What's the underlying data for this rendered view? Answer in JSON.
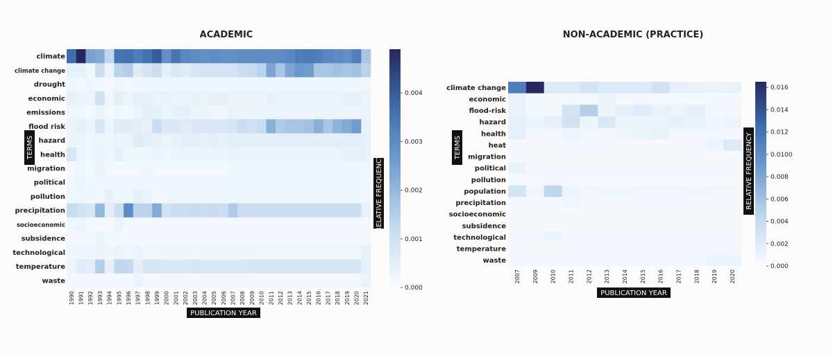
{
  "chart_data": [
    {
      "type": "heatmap",
      "title": "ACADEMIC",
      "xlabel": "PUBLICATION YEAR",
      "ylabel": "TERMS",
      "colorbar_label": "RELATIVE FREQUENCY",
      "colorbar_ticks": [
        "0.000",
        "0.001",
        "0.002",
        "0.003",
        "0.004"
      ],
      "vmin": 0,
      "vmax": 0.0049,
      "colormap": [
        "#f7fbff",
        "#c6dbef",
        "#6a98cc",
        "#3f6fb1",
        "#26285e"
      ],
      "x": [
        "1990",
        "1991",
        "1992",
        "1993",
        "1994",
        "1995",
        "1996",
        "1997",
        "1998",
        "1999",
        "2000",
        "2001",
        "2002",
        "2003",
        "2004",
        "2005",
        "2006",
        "2007",
        "2008",
        "2009",
        "2010",
        "2011",
        "2012",
        "2013",
        "2014",
        "2015",
        "2016",
        "2017",
        "2018",
        "2019",
        "2020",
        "2021"
      ],
      "y": [
        "climate",
        "climate change",
        "drought",
        "economic",
        "emissions",
        "flood risk",
        "hazard",
        "health",
        "migration",
        "political",
        "pollution",
        "precipitation",
        "socioeconomic",
        "subsidence",
        "technological",
        "temperature",
        "waste"
      ],
      "z": [
        [
          0.0037,
          0.0049,
          0.0025,
          0.0023,
          0.0013,
          0.0035,
          0.0036,
          0.0033,
          0.0036,
          0.004,
          0.0029,
          0.0035,
          0.0031,
          0.003,
          0.0029,
          0.003,
          0.0029,
          0.0029,
          0.003,
          0.003,
          0.003,
          0.003,
          0.003,
          0.0031,
          0.0033,
          0.0034,
          0.0033,
          0.0031,
          0.003,
          0.0029,
          0.0033,
          0.0017
        ],
        [
          0.0004,
          0.0004,
          0.0002,
          0.0011,
          0.0003,
          0.0014,
          0.0015,
          0.0006,
          0.0009,
          0.0011,
          0.0005,
          0.0007,
          0.0006,
          0.0008,
          0.0009,
          0.0009,
          0.0009,
          0.0009,
          0.0011,
          0.0012,
          0.0014,
          0.0024,
          0.0017,
          0.0024,
          0.0027,
          0.0026,
          0.0017,
          0.0017,
          0.0018,
          0.0017,
          0.0018,
          0.0014
        ],
        [
          0.0002,
          0.0001,
          0.0002,
          0.0001,
          0.0001,
          0.0002,
          0.0001,
          0.0002,
          0.0002,
          0.0002,
          0.0002,
          0.0002,
          0.0002,
          0.0002,
          0.0002,
          0.0002,
          0.0002,
          0.0002,
          0.0002,
          0.0002,
          0.0002,
          0.0002,
          0.0002,
          0.0002,
          0.0002,
          0.0002,
          0.0002,
          0.0002,
          0.0002,
          0.0002,
          0.0002,
          0.0002
        ],
        [
          0.0004,
          0.0003,
          0.0003,
          0.001,
          0.0002,
          0.0005,
          0.0003,
          0.0004,
          0.0004,
          0.0003,
          0.0004,
          0.0003,
          0.0003,
          0.0004,
          0.0003,
          0.0004,
          0.0004,
          0.0003,
          0.0003,
          0.0003,
          0.0003,
          0.0004,
          0.0003,
          0.0003,
          0.0003,
          0.0003,
          0.0003,
          0.0003,
          0.0003,
          0.0004,
          0.0004,
          0.0003
        ],
        [
          0.0002,
          0.0002,
          0.0001,
          0.0003,
          0.0001,
          0.0002,
          0.0001,
          0.0003,
          0.0005,
          0.0004,
          0.0003,
          0.0004,
          0.0004,
          0.0003,
          0.0003,
          0.0002,
          0.0002,
          0.0004,
          0.0003,
          0.0003,
          0.0003,
          0.0003,
          0.0003,
          0.0003,
          0.0003,
          0.0003,
          0.0003,
          0.0003,
          0.0003,
          0.0003,
          0.0003,
          0.0003
        ],
        [
          0.0003,
          0.0004,
          0.0003,
          0.0008,
          0.0003,
          0.0006,
          0.0006,
          0.0005,
          0.0004,
          0.0011,
          0.0007,
          0.0007,
          0.0006,
          0.0007,
          0.0007,
          0.0007,
          0.0007,
          0.0008,
          0.0011,
          0.001,
          0.0012,
          0.0022,
          0.0016,
          0.0017,
          0.0017,
          0.0018,
          0.0022,
          0.0017,
          0.0021,
          0.0023,
          0.0026,
          0.0004
        ],
        [
          0.0003,
          0.0003,
          0.0002,
          0.0003,
          0.0002,
          0.0003,
          0.0003,
          0.0006,
          0.0005,
          0.0004,
          0.0003,
          0.0004,
          0.0005,
          0.0005,
          0.0004,
          0.0005,
          0.0004,
          0.0005,
          0.0005,
          0.0005,
          0.0005,
          0.0005,
          0.0005,
          0.0005,
          0.0005,
          0.0005,
          0.0005,
          0.0005,
          0.0005,
          0.0005,
          0.0005,
          0.0004
        ],
        [
          0.0008,
          0.0003,
          0.0002,
          0.0003,
          0.0002,
          0.0004,
          0.0002,
          0.0002,
          0.0002,
          0.0003,
          0.0002,
          0.0003,
          0.0003,
          0.0003,
          0.0003,
          0.0003,
          0.0003,
          0.0004,
          0.0003,
          0.0003,
          0.0003,
          0.0003,
          0.0003,
          0.0003,
          0.0003,
          0.0003,
          0.0003,
          0.0003,
          0.0003,
          0.0004,
          0.0004,
          0.0004
        ],
        [
          0.0001,
          0.0002,
          0.0001,
          0.0003,
          0.0001,
          0.0001,
          0.0001,
          0.0001,
          0.0002,
          0.0001,
          0.0001,
          0.0001,
          0.0001,
          0.0001,
          0.0001,
          0.0001,
          0.0001,
          0.0002,
          0.0002,
          0.0002,
          0.0002,
          0.0002,
          0.0002,
          0.0002,
          0.0002,
          0.0002,
          0.0002,
          0.0002,
          0.0002,
          0.0002,
          0.0002,
          0.0002
        ],
        [
          0.0002,
          0.0003,
          0.0002,
          0.0002,
          0.0002,
          0.0002,
          0.0002,
          0.0002,
          0.0002,
          0.0002,
          0.0002,
          0.0002,
          0.0002,
          0.0002,
          0.0002,
          0.0002,
          0.0002,
          0.0002,
          0.0002,
          0.0002,
          0.0002,
          0.0002,
          0.0002,
          0.0002,
          0.0002,
          0.0002,
          0.0002,
          0.0002,
          0.0002,
          0.0002,
          0.0002,
          0.0002
        ],
        [
          0.0002,
          0.0002,
          0.0002,
          0.0002,
          0.0004,
          0.0002,
          0.0002,
          0.0004,
          0.0003,
          0.0001,
          0.0002,
          0.0002,
          0.0002,
          0.0002,
          0.0002,
          0.0002,
          0.0002,
          0.0002,
          0.0002,
          0.0002,
          0.0002,
          0.0002,
          0.0002,
          0.0002,
          0.0002,
          0.0002,
          0.0002,
          0.0002,
          0.0002,
          0.0002,
          0.0002,
          0.0002
        ],
        [
          0.0012,
          0.001,
          0.0008,
          0.002,
          0.0005,
          0.0011,
          0.003,
          0.0014,
          0.0014,
          0.0023,
          0.001,
          0.0011,
          0.0011,
          0.0012,
          0.0011,
          0.0012,
          0.0011,
          0.0016,
          0.0011,
          0.0011,
          0.0011,
          0.0011,
          0.0011,
          0.0011,
          0.0011,
          0.0011,
          0.0011,
          0.0011,
          0.0011,
          0.0011,
          0.0011,
          0.0004
        ],
        [
          0.0002,
          0.0003,
          0.0001,
          0.0001,
          0.0001,
          0.0003,
          0.0001,
          0.0001,
          0.0001,
          0.0001,
          0.0001,
          0.0001,
          0.0001,
          0.0001,
          0.0001,
          0.0001,
          0.0001,
          0.0001,
          0.0001,
          0.0001,
          0.0001,
          0.0001,
          0.0001,
          0.0001,
          0.0001,
          0.0001,
          0.0001,
          0.0001,
          0.0001,
          0.0001,
          0.0001,
          0.0001
        ],
        [
          0.0001,
          0.0001,
          0.0001,
          0.0003,
          0.0001,
          0.0001,
          0.0001,
          0.0001,
          0.0001,
          0.0001,
          0.0001,
          0.0001,
          0.0001,
          0.0001,
          0.0001,
          0.0001,
          0.0001,
          0.0001,
          0.0001,
          0.0001,
          0.0001,
          0.0001,
          0.0001,
          0.0001,
          0.0001,
          0.0001,
          0.0001,
          0.0001,
          0.0001,
          0.0001,
          0.0001,
          0.0001
        ],
        [
          0.0002,
          0.0002,
          0.0002,
          0.0003,
          0.0002,
          0.0003,
          0.0002,
          0.0003,
          0.0002,
          0.0002,
          0.0002,
          0.0002,
          0.0002,
          0.0002,
          0.0002,
          0.0002,
          0.0002,
          0.0002,
          0.0002,
          0.0002,
          0.0002,
          0.0002,
          0.0002,
          0.0002,
          0.0002,
          0.0002,
          0.0002,
          0.0002,
          0.0002,
          0.0002,
          0.0002,
          0.0004
        ],
        [
          0.0003,
          0.0006,
          0.0005,
          0.0015,
          0.0004,
          0.0013,
          0.0013,
          0.0005,
          0.0008,
          0.0008,
          0.0007,
          0.0007,
          0.0007,
          0.0008,
          0.0007,
          0.0007,
          0.0007,
          0.0007,
          0.0007,
          0.0008,
          0.0008,
          0.0008,
          0.0008,
          0.0008,
          0.0008,
          0.0008,
          0.0008,
          0.0008,
          0.0008,
          0.0008,
          0.0008,
          0.0004
        ],
        [
          0.0001,
          0.0001,
          0.0001,
          0.0001,
          0.0001,
          0.0001,
          0.0001,
          0.0003,
          0.0001,
          0.0001,
          0.0001,
          0.0001,
          0.0001,
          0.0001,
          0.0001,
          0.0001,
          0.0001,
          0.0001,
          0.0001,
          0.0001,
          0.0001,
          0.0001,
          0.0001,
          0.0001,
          0.0001,
          0.0001,
          0.0001,
          0.0001,
          0.0001,
          0.0001,
          0.0001,
          0.0003
        ]
      ]
    },
    {
      "type": "heatmap",
      "title": "NON-ACADEMIC (PRACTICE)",
      "xlabel": "PUBLICATION YEAR",
      "ylabel": "TERMS",
      "colorbar_label": "RELATIVE FREQUENCY",
      "colorbar_ticks": [
        "0.000",
        "0.002",
        "0.004",
        "0.006",
        "0.008",
        "0.0100",
        "0.012",
        "0.014",
        "0.016"
      ],
      "vmin": 0,
      "vmax": 0.0165,
      "colormap": [
        "#f7fbff",
        "#c6dbef",
        "#6a98cc",
        "#3f6fb1",
        "#26285e"
      ],
      "x": [
        "2007",
        "2009",
        "2010",
        "2011",
        "2012",
        "2013",
        "2014",
        "2015",
        "2016",
        "2017",
        "2018",
        "2019",
        "2020"
      ],
      "y": [
        "climate change",
        "economic",
        "flood-risk",
        "hazard",
        "health",
        "heat",
        "migration",
        "political",
        "pollution",
        "population",
        "precipitation",
        "socioeconomic",
        "subsidence",
        "technological",
        "temperature",
        "waste"
      ],
      "z": [
        [
          0.0112,
          0.0165,
          0.0022,
          0.0022,
          0.003,
          0.0023,
          0.0022,
          0.0023,
          0.0032,
          0.0014,
          0.0012,
          0.001,
          0.0012
        ],
        [
          0.0012,
          0.0003,
          0.0002,
          0.0003,
          0.0004,
          0.0008,
          0.0004,
          0.0004,
          0.0003,
          0.0003,
          0.0003,
          0.0003,
          0.0003
        ],
        [
          0.0012,
          0.0004,
          0.0003,
          0.003,
          0.005,
          0.0009,
          0.0015,
          0.002,
          0.0012,
          0.001,
          0.0015,
          0.0005,
          0.0005
        ],
        [
          0.0016,
          0.0008,
          0.0013,
          0.0032,
          0.0008,
          0.0024,
          0.0008,
          0.0009,
          0.0009,
          0.0013,
          0.0012,
          0.0007,
          0.0008
        ],
        [
          0.0014,
          0.0004,
          0.0005,
          0.0008,
          0.0005,
          0.0005,
          0.0006,
          0.0008,
          0.0012,
          0.0005,
          0.0005,
          0.0005,
          0.0004
        ],
        [
          0.0004,
          0.0002,
          0.0002,
          0.0005,
          0.0004,
          0.0003,
          0.0002,
          0.0002,
          0.0002,
          0.0002,
          0.0003,
          0.0008,
          0.0022
        ],
        [
          0.0003,
          0.0002,
          0.0002,
          0.0002,
          0.0002,
          0.0002,
          0.0002,
          0.0002,
          0.0002,
          0.0002,
          0.0002,
          0.0002,
          0.0002
        ],
        [
          0.0012,
          0.0003,
          0.0003,
          0.0005,
          0.0004,
          0.0004,
          0.0004,
          0.0004,
          0.0003,
          0.0004,
          0.0004,
          0.0004,
          0.0004
        ],
        [
          0.0003,
          0.0002,
          0.0002,
          0.0003,
          0.0002,
          0.0003,
          0.0002,
          0.0002,
          0.0002,
          0.0002,
          0.0002,
          0.0002,
          0.0002
        ],
        [
          0.003,
          0.0006,
          0.0045,
          0.0008,
          0.0005,
          0.0006,
          0.0006,
          0.0005,
          0.0005,
          0.0005,
          0.0006,
          0.0005,
          0.0005
        ],
        [
          0.0004,
          0.0003,
          0.0003,
          0.0006,
          0.0004,
          0.0004,
          0.0004,
          0.0004,
          0.0004,
          0.0004,
          0.0004,
          0.0004,
          0.0004
        ],
        [
          0.0002,
          0.0002,
          0.0002,
          0.0002,
          0.0002,
          0.0002,
          0.0002,
          0.0002,
          0.0002,
          0.0002,
          0.0002,
          0.0002,
          0.0002
        ],
        [
          0.0002,
          0.0002,
          0.0002,
          0.0002,
          0.0002,
          0.0002,
          0.0002,
          0.0002,
          0.0002,
          0.0002,
          0.0002,
          0.0002,
          0.0002
        ],
        [
          0.0005,
          0.0003,
          0.0008,
          0.0003,
          0.0003,
          0.0003,
          0.0003,
          0.0003,
          0.0003,
          0.0003,
          0.0003,
          0.0003,
          0.0003
        ],
        [
          0.0003,
          0.0002,
          0.0002,
          0.0004,
          0.0003,
          0.0003,
          0.0003,
          0.0003,
          0.0003,
          0.0003,
          0.0003,
          0.0003,
          0.0003
        ],
        [
          0.0003,
          0.0003,
          0.0003,
          0.0003,
          0.0003,
          0.0003,
          0.0004,
          0.0003,
          0.0003,
          0.0004,
          0.0003,
          0.0008,
          0.0008
        ]
      ]
    }
  ]
}
